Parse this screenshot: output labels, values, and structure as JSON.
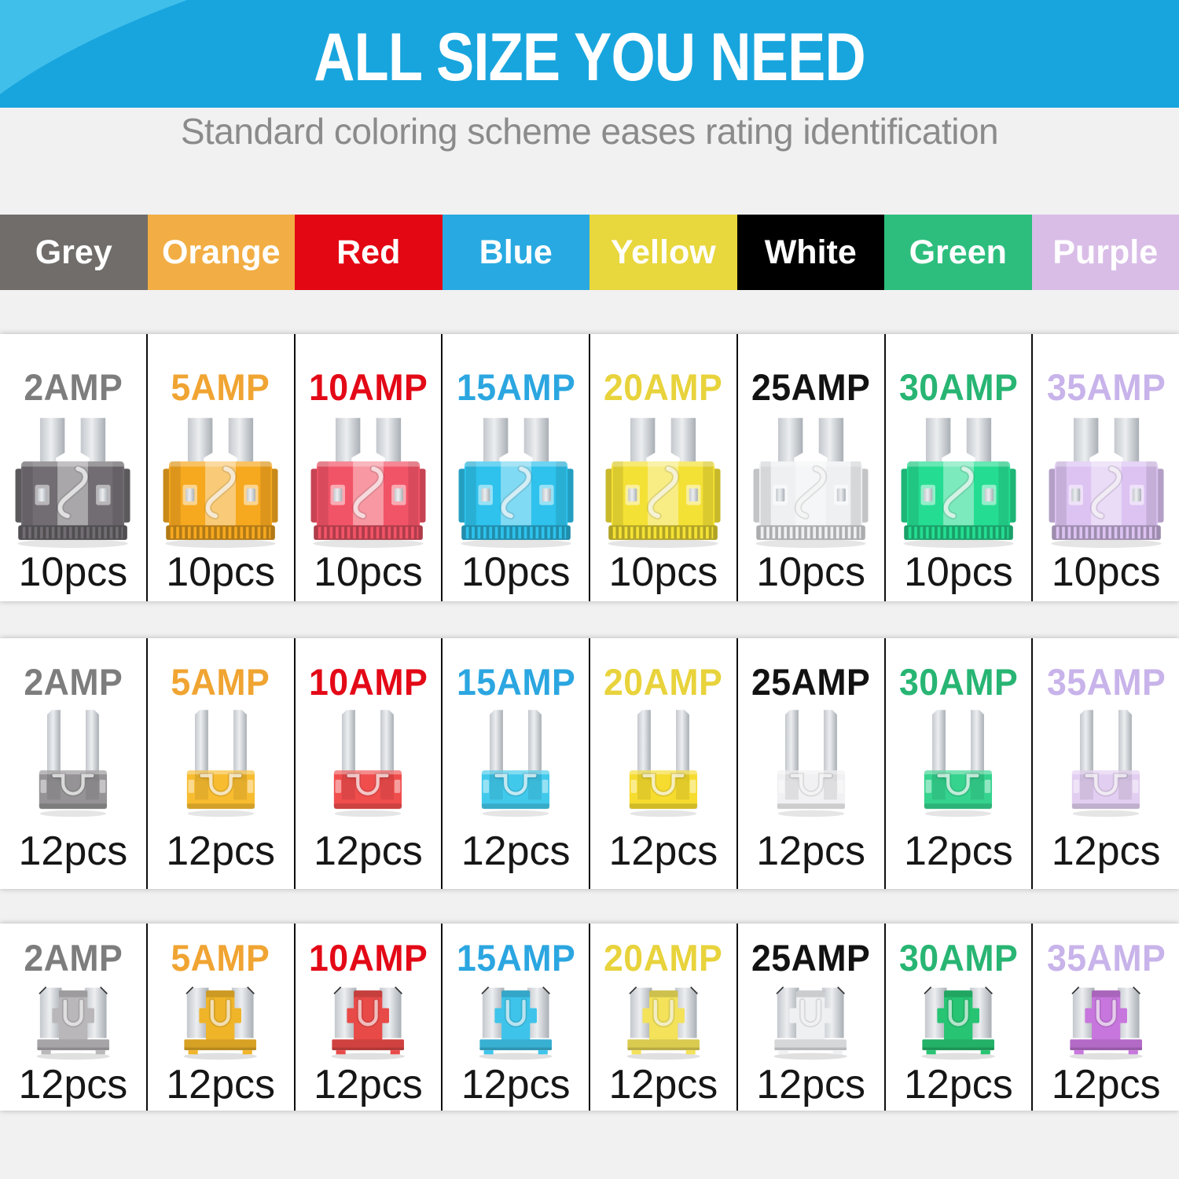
{
  "page": {
    "background": "#f1f1f2"
  },
  "header": {
    "title": "ALL SIZE YOU NEED",
    "subtitle": "Standard coloring scheme eases rating identification",
    "bg_color": "#18a5de",
    "accent_curve_color": "#41bfeb",
    "title_color": "#ffffff",
    "subtitle_color": "#8b8b8b"
  },
  "legend": {
    "items": [
      {
        "label": "Grey",
        "bg": "#706d6a",
        "text": "#ffffff"
      },
      {
        "label": "Orange",
        "bg": "#f2ae44",
        "text": "#ffffff"
      },
      {
        "label": "Red",
        "bg": "#e30613",
        "text": "#ffffff"
      },
      {
        "label": "Blue",
        "bg": "#29a9e1",
        "text": "#ffffff"
      },
      {
        "label": "Yellow",
        "bg": "#e8d73d",
        "text": "#ffffff"
      },
      {
        "label": "White",
        "bg": "#000000",
        "text": "#ffffff"
      },
      {
        "label": "Green",
        "bg": "#2dbe7e",
        "text": "#ffffff"
      },
      {
        "label": "Purple",
        "bg": "#d9bde7",
        "text": "#ffffff"
      }
    ]
  },
  "rows": [
    {
      "fuse_type": "standard",
      "cards": [
        {
          "amp": "2AMP",
          "qty": "10pcs",
          "label_color": "#7d7d7d",
          "fuse_color": "#716d72"
        },
        {
          "amp": "5AMP",
          "qty": "10pcs",
          "label_color": "#f0a432",
          "fuse_color": "#f6a81f"
        },
        {
          "amp": "10AMP",
          "qty": "10pcs",
          "label_color": "#e30917",
          "fuse_color": "#f25467"
        },
        {
          "amp": "15AMP",
          "qty": "10pcs",
          "label_color": "#2ba6e0",
          "fuse_color": "#2ec2ec"
        },
        {
          "amp": "20AMP",
          "qty": "10pcs",
          "label_color": "#e8d33c",
          "fuse_color": "#f4e135"
        },
        {
          "amp": "25AMP",
          "qty": "10pcs",
          "label_color": "#121212",
          "fuse_color": "#eef0f2"
        },
        {
          "amp": "30AMP",
          "qty": "10pcs",
          "label_color": "#28b573",
          "fuse_color": "#25dd92"
        },
        {
          "amp": "35AMP",
          "qty": "10pcs",
          "label_color": "#c8b3ea",
          "fuse_color": "#dcc3f2"
        }
      ]
    },
    {
      "fuse_type": "mini",
      "cards": [
        {
          "amp": "2AMP",
          "qty": "12pcs",
          "label_color": "#7d7d7d",
          "fuse_color": "#8a8789"
        },
        {
          "amp": "5AMP",
          "qty": "12pcs",
          "label_color": "#f0a432",
          "fuse_color": "#f7b519"
        },
        {
          "amp": "10AMP",
          "qty": "12pcs",
          "label_color": "#e30917",
          "fuse_color": "#ee3a3a"
        },
        {
          "amp": "15AMP",
          "qty": "12pcs",
          "label_color": "#2ba6e0",
          "fuse_color": "#2cc3ea"
        },
        {
          "amp": "20AMP",
          "qty": "12pcs",
          "label_color": "#e8d33c",
          "fuse_color": "#f5d818"
        },
        {
          "amp": "25AMP",
          "qty": "12pcs",
          "label_color": "#121212",
          "fuse_color": "#eff0f2"
        },
        {
          "amp": "30AMP",
          "qty": "12pcs",
          "label_color": "#28b573",
          "fuse_color": "#1fce82"
        },
        {
          "amp": "35AMP",
          "qty": "12pcs",
          "label_color": "#c8b3ea",
          "fuse_color": "#dfc9f0"
        }
      ]
    },
    {
      "fuse_type": "low-profile",
      "cards": [
        {
          "amp": "2AMP",
          "qty": "12pcs",
          "label_color": "#7d7d7d",
          "fuse_color": "#b9b7ba"
        },
        {
          "amp": "5AMP",
          "qty": "12pcs",
          "label_color": "#f0a432",
          "fuse_color": "#f0b429"
        },
        {
          "amp": "10AMP",
          "qty": "12pcs",
          "label_color": "#e30917",
          "fuse_color": "#e84a48"
        },
        {
          "amp": "15AMP",
          "qty": "12pcs",
          "label_color": "#2ba6e0",
          "fuse_color": "#3ec4ea"
        },
        {
          "amp": "20AMP",
          "qty": "12pcs",
          "label_color": "#e8d33c",
          "fuse_color": "#f3e25a"
        },
        {
          "amp": "25AMP",
          "qty": "12pcs",
          "label_color": "#121212",
          "fuse_color": "#eff0f2"
        },
        {
          "amp": "30AMP",
          "qty": "12pcs",
          "label_color": "#28b573",
          "fuse_color": "#27c473"
        },
        {
          "amp": "35AMP",
          "qty": "12pcs",
          "label_color": "#c8b3ea",
          "fuse_color": "#c776dd"
        }
      ]
    }
  ]
}
